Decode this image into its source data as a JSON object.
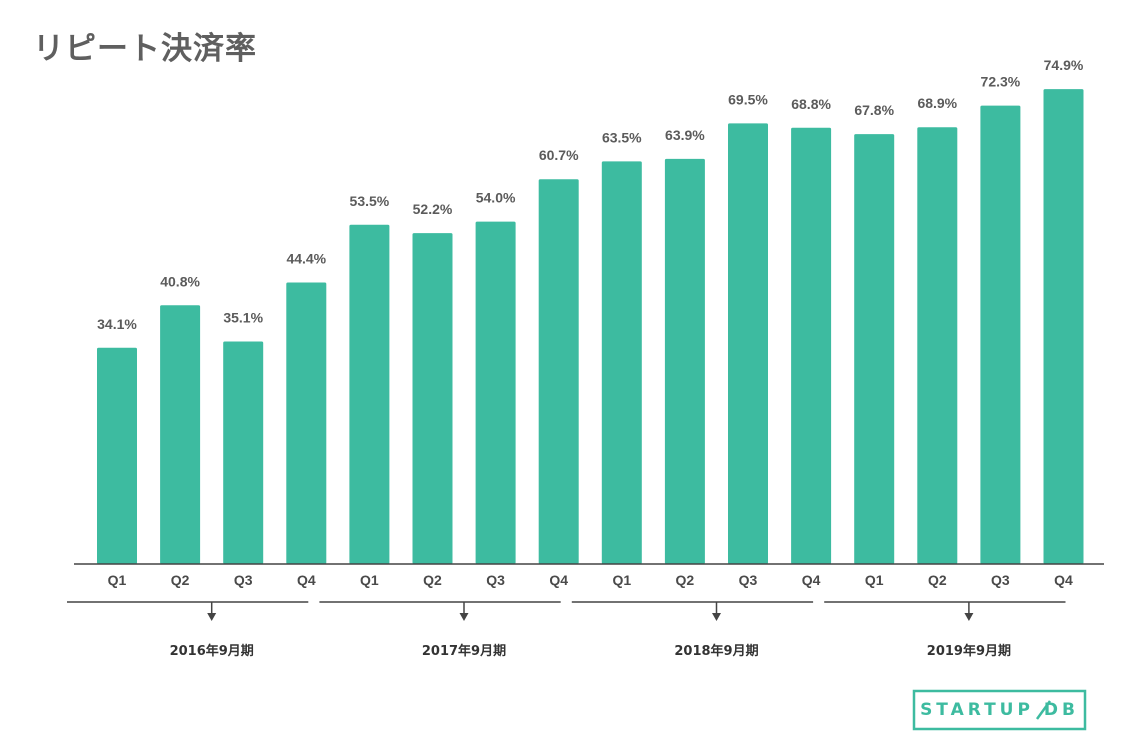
{
  "title": "リピート決済率",
  "colors": {
    "bar": "#3dbba0",
    "axis": "#444444",
    "title": "#5f5f5f"
  },
  "logo": {
    "text": "STARTUP DB",
    "color": "#3dbba0"
  },
  "chart_data": {
    "type": "bar",
    "title": "リピート決済率",
    "xlabel": "",
    "ylabel": "",
    "ylim": [
      0,
      75
    ],
    "grid": false,
    "categories": [
      "Q1",
      "Q2",
      "Q3",
      "Q4",
      "Q1",
      "Q2",
      "Q3",
      "Q4",
      "Q1",
      "Q2",
      "Q3",
      "Q4",
      "Q1",
      "Q2",
      "Q3",
      "Q4"
    ],
    "values": [
      34.1,
      40.8,
      35.1,
      44.4,
      53.5,
      52.2,
      54.0,
      60.7,
      63.5,
      63.9,
      69.5,
      68.8,
      67.8,
      68.9,
      72.3,
      74.9
    ],
    "value_labels": [
      "34.1%",
      "40.8%",
      "35.1%",
      "44.4%",
      "53.5%",
      "52.2%",
      "54.0%",
      "60.7%",
      "63.5%",
      "63.9%",
      "69.5%",
      "68.8%",
      "67.8%",
      "68.9%",
      "72.3%",
      "74.9%"
    ],
    "groups": [
      {
        "label": "2016年9月期",
        "categories": [
          "Q1",
          "Q2",
          "Q3",
          "Q4"
        ]
      },
      {
        "label": "2017年9月期",
        "categories": [
          "Q1",
          "Q2",
          "Q3",
          "Q4"
        ]
      },
      {
        "label": "2018年9月期",
        "categories": [
          "Q1",
          "Q2",
          "Q3",
          "Q4"
        ]
      },
      {
        "label": "2019年9月期",
        "categories": [
          "Q1",
          "Q2",
          "Q3",
          "Q4"
        ]
      }
    ]
  }
}
